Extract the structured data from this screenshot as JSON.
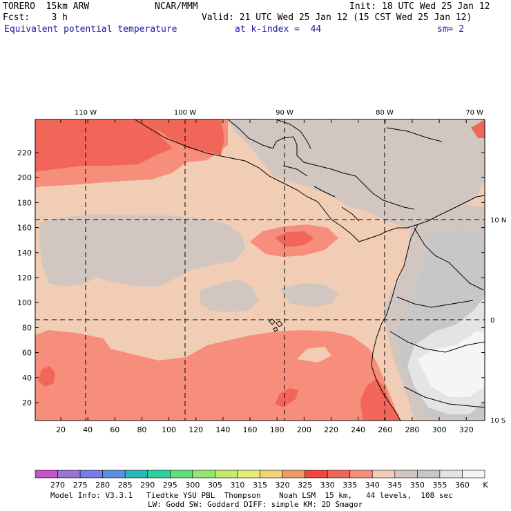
{
  "header": {
    "model": "TORERO  15km ARW",
    "center": "NCAR/MMM",
    "init": "Init: 18 UTC Wed 25 Jan 12",
    "fcst": "Fcst:    3 h",
    "valid": "Valid: 21 UTC Wed 25 Jan 12 (15 CST Wed 25 Jan 12)",
    "field": "Equivalent potential temperature",
    "level": "at k-index =  44",
    "smooth": "sm= 2"
  },
  "map": {
    "top_lon_labels": [
      "110 W",
      "100 W",
      "90 W",
      "80 W",
      "70 W"
    ],
    "right_lat_labels": [
      "10 N",
      "0",
      "10 S"
    ],
    "y_ticks": [
      "20",
      "40",
      "60",
      "80",
      "100",
      "120",
      "140",
      "160",
      "180",
      "200",
      "220"
    ],
    "x_ticks": [
      "20",
      "40",
      "60",
      "80",
      "100",
      "120",
      "140",
      "160",
      "180",
      "200",
      "220",
      "240",
      "260",
      "280",
      "300",
      "320"
    ],
    "colors": {
      "c340": "#f2cdb5",
      "c345": "#d2c6c1",
      "c350": "#c7c7c7",
      "c355": "#e4e4e4",
      "c360": "#f5f5f5",
      "c335": "#f78e7b",
      "c330": "#f2665a",
      "c325": "#f24c48"
    }
  },
  "colorbar": {
    "labels": [
      "270",
      "275",
      "280",
      "285",
      "290",
      "295",
      "300",
      "305",
      "310",
      "315",
      "320",
      "325",
      "330",
      "335",
      "340",
      "345",
      "350",
      "355",
      "360"
    ],
    "unit": "K",
    "colors": [
      "#c652c6",
      "#9a74d2",
      "#7a7ce6",
      "#5b8fe6",
      "#2ab9b9",
      "#2ad39e",
      "#5ee07a",
      "#93e66e",
      "#c3ec6e",
      "#e6ef72",
      "#f2d37a",
      "#f29b6a",
      "#f2483c",
      "#f2665a",
      "#f78e7b",
      "#f2cdb5",
      "#d2c6c1",
      "#c7c7c7",
      "#e4e4e4",
      "#f5f5f5"
    ]
  },
  "footer": {
    "line1": "Model Info: V3.3.1   Tiedtke YSU PBL  Thompson    Noah LSM  15 km,   44 levels,  108 sec",
    "line2": "LW: Godd SW: Goddard DIFF: simple KM: 2D Smagor"
  }
}
